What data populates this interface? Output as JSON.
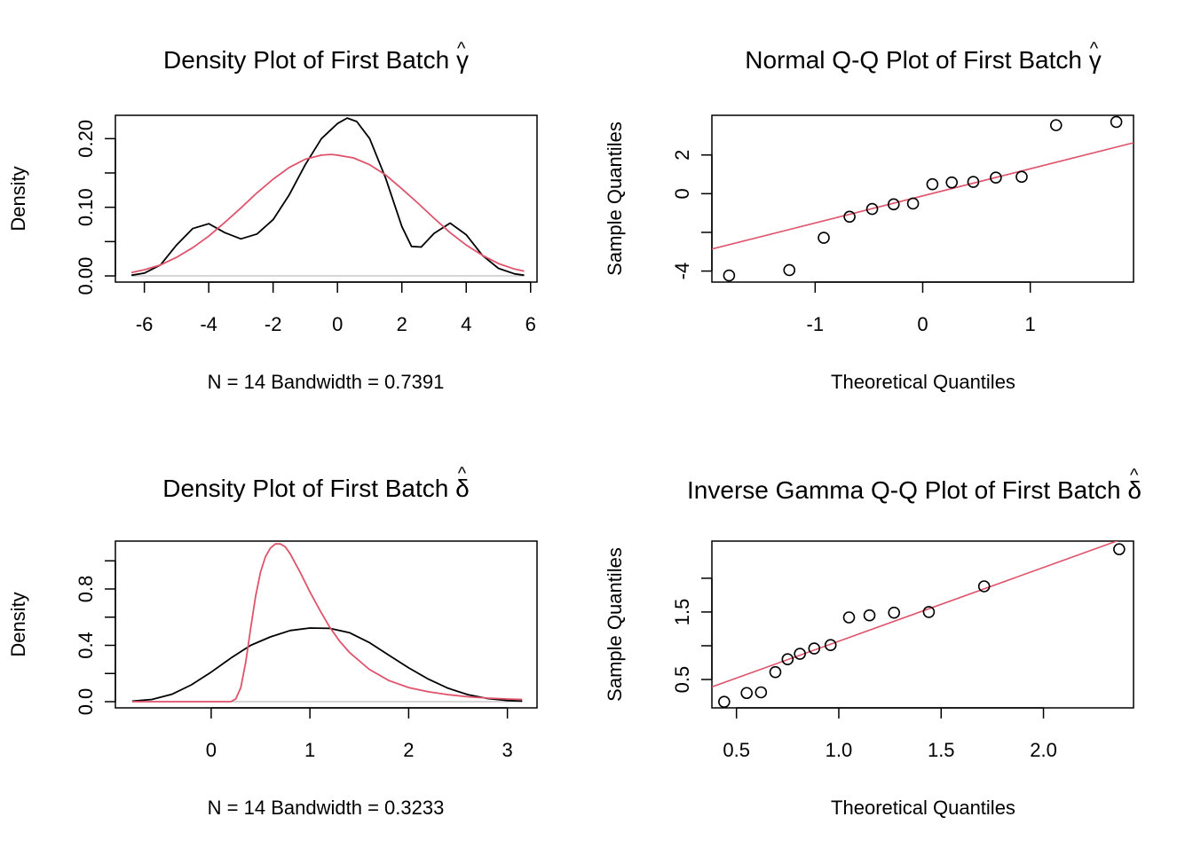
{
  "colors": {
    "black": "#000000",
    "red": "#DF536B",
    "zero_line": "#bebebe"
  },
  "chart_data": [
    {
      "id": "p1",
      "type": "line",
      "title": "Density Plot of First Batch",
      "title_symbol": "γ",
      "title_hat": "^",
      "xlabel": "N = 14   Bandwidth = 0.7391",
      "ylabel": "Density",
      "xlim": [
        -6.9,
        6.2
      ],
      "ylim": [
        -0.009,
        0.234
      ],
      "xticks": [
        -6,
        -4,
        -2,
        0,
        2,
        4,
        6
      ],
      "xtick_labels": [
        "-6",
        "-4",
        "-2",
        "0",
        "2",
        "4",
        "6"
      ],
      "yticks": [
        0.0,
        0.05,
        0.1,
        0.15,
        0.2
      ],
      "ytick_labels": [
        "0.00",
        "",
        "0.10",
        "",
        "0.20"
      ],
      "series": [
        {
          "name": "kernel density",
          "color": "#000000",
          "x": [
            -6.4,
            -6.0,
            -5.5,
            -5.0,
            -4.5,
            -4.0,
            -3.5,
            -3.0,
            -2.5,
            -2.0,
            -1.5,
            -1.0,
            -0.5,
            0.0,
            0.3,
            0.6,
            1.0,
            1.5,
            2.0,
            2.3,
            2.6,
            3.0,
            3.5,
            4.0,
            4.5,
            5.0,
            5.5,
            5.8
          ],
          "y": [
            0.001,
            0.004,
            0.016,
            0.045,
            0.069,
            0.076,
            0.063,
            0.054,
            0.061,
            0.082,
            0.118,
            0.162,
            0.2,
            0.222,
            0.23,
            0.225,
            0.2,
            0.142,
            0.072,
            0.043,
            0.042,
            0.062,
            0.077,
            0.06,
            0.03,
            0.011,
            0.003,
            0.001
          ]
        },
        {
          "name": "normal fit",
          "color": "#DF536B",
          "x": [
            -6.4,
            -6.0,
            -5.5,
            -5.0,
            -4.5,
            -4.0,
            -3.5,
            -3.0,
            -2.5,
            -2.0,
            -1.5,
            -1.0,
            -0.5,
            -0.2,
            0.0,
            0.5,
            1.0,
            1.5,
            2.0,
            2.5,
            3.0,
            3.5,
            4.0,
            4.5,
            5.0,
            5.5,
            5.8
          ],
          "y": [
            0.005,
            0.009,
            0.016,
            0.027,
            0.041,
            0.058,
            0.078,
            0.099,
            0.121,
            0.141,
            0.158,
            0.17,
            0.176,
            0.177,
            0.176,
            0.172,
            0.162,
            0.147,
            0.127,
            0.106,
            0.084,
            0.063,
            0.045,
            0.03,
            0.018,
            0.01,
            0.007
          ]
        }
      ]
    },
    {
      "id": "p2",
      "type": "scatter",
      "title": "Normal Q-Q Plot of First Batch",
      "title_symbol": "γ",
      "title_hat": "^",
      "xlabel": "Theoretical Quantiles",
      "ylabel": "Sample Quantiles",
      "xlim": [
        -1.96,
        1.96
      ],
      "ylim": [
        -4.57,
        4.05
      ],
      "xticks": [
        -1,
        0,
        1
      ],
      "xtick_labels": [
        "-1",
        "0",
        "1"
      ],
      "yticks": [
        -4,
        -2,
        0,
        2
      ],
      "ytick_labels": [
        "-4",
        "",
        "0",
        "2"
      ],
      "points": {
        "x": [
          -1.8,
          -1.24,
          -0.92,
          -0.68,
          -0.47,
          -0.27,
          -0.09,
          0.09,
          0.27,
          0.47,
          0.68,
          0.92,
          1.24,
          1.8
        ],
        "y": [
          -4.23,
          -3.95,
          -2.28,
          -1.19,
          -0.79,
          -0.55,
          -0.51,
          0.49,
          0.58,
          0.61,
          0.83,
          0.87,
          3.54,
          3.71
        ]
      },
      "ref_line": {
        "x": [
          -1.96,
          1.96
        ],
        "y": [
          -2.86,
          2.63
        ],
        "color": "#DF536B"
      }
    },
    {
      "id": "p3",
      "type": "line",
      "title": "Density Plot of First Batch",
      "title_symbol": "δ",
      "title_hat": "^",
      "xlabel": "N = 14   Bandwidth = 0.3233",
      "ylabel": "Density",
      "xlim": [
        -0.97,
        3.3
      ],
      "ylim": [
        -0.044,
        1.14
      ],
      "xticks": [
        0,
        1,
        2,
        3
      ],
      "xtick_labels": [
        "0",
        "1",
        "2",
        "3"
      ],
      "yticks": [
        0.0,
        0.2,
        0.4,
        0.6,
        0.8,
        1.0
      ],
      "ytick_labels": [
        "0.0",
        "",
        "0.4",
        "",
        "0.8",
        ""
      ],
      "series": [
        {
          "name": "kernel density",
          "color": "#000000",
          "x": [
            -0.8,
            -0.6,
            -0.4,
            -0.2,
            0.0,
            0.2,
            0.4,
            0.6,
            0.8,
            1.0,
            1.2,
            1.4,
            1.6,
            1.8,
            2.0,
            2.2,
            2.4,
            2.6,
            2.8,
            3.0,
            3.15
          ],
          "y": [
            0.004,
            0.016,
            0.052,
            0.12,
            0.21,
            0.31,
            0.4,
            0.46,
            0.505,
            0.523,
            0.52,
            0.49,
            0.42,
            0.33,
            0.24,
            0.16,
            0.095,
            0.05,
            0.022,
            0.008,
            0.004
          ]
        },
        {
          "name": "inverse gamma fit",
          "color": "#DF536B",
          "x": [
            -0.8,
            0.0,
            0.2,
            0.25,
            0.3,
            0.35,
            0.4,
            0.45,
            0.5,
            0.55,
            0.6,
            0.65,
            0.7,
            0.75,
            0.8,
            0.9,
            1.0,
            1.1,
            1.2,
            1.3,
            1.4,
            1.6,
            1.8,
            2.0,
            2.2,
            2.4,
            2.6,
            2.8,
            3.0,
            3.15
          ],
          "y": [
            0.0,
            0.0,
            0.0,
            0.02,
            0.1,
            0.28,
            0.52,
            0.75,
            0.92,
            1.03,
            1.09,
            1.12,
            1.12,
            1.1,
            1.05,
            0.92,
            0.78,
            0.65,
            0.53,
            0.43,
            0.35,
            0.23,
            0.15,
            0.1,
            0.07,
            0.05,
            0.035,
            0.025,
            0.019,
            0.016
          ]
        }
      ]
    },
    {
      "id": "p4",
      "type": "scatter",
      "title": "Inverse Gamma Q-Q Plot of First Batch",
      "title_symbol": "δ",
      "title_hat": "^",
      "xlabel": "Theoretical Quantiles",
      "ylabel": "Sample Quantiles",
      "xlim": [
        0.38,
        2.44
      ],
      "ylim": [
        0.08,
        2.55
      ],
      "xticks": [
        0.5,
        1.0,
        1.5,
        2.0
      ],
      "xtick_labels": [
        "0.5",
        "1.0",
        "1.5",
        "2.0"
      ],
      "yticks": [
        0.5,
        1.0,
        1.5,
        2.0
      ],
      "ytick_labels": [
        "0.5",
        "",
        "1.5",
        ""
      ],
      "points": {
        "x": [
          0.44,
          0.55,
          0.62,
          0.69,
          0.75,
          0.81,
          0.88,
          0.96,
          1.05,
          1.15,
          1.27,
          1.44,
          1.71,
          2.37
        ],
        "y": [
          0.17,
          0.3,
          0.31,
          0.61,
          0.8,
          0.88,
          0.96,
          1.01,
          1.42,
          1.45,
          1.49,
          1.5,
          1.88,
          2.43
        ]
      },
      "ref_line": {
        "x": [
          0.38,
          2.44
        ],
        "y": [
          0.39,
          2.64
        ],
        "color": "#DF536B"
      }
    }
  ]
}
